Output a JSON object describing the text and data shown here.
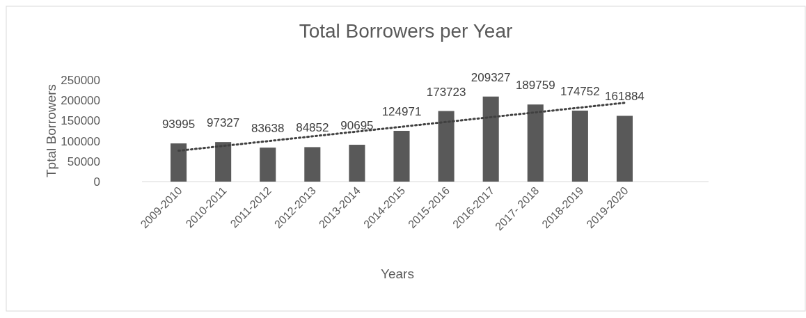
{
  "chart_data": {
    "type": "bar",
    "title": "Total Borrowers per Year",
    "xlabel": "Years",
    "ylabel": "Tptal Borrowers",
    "categories": [
      "2009-2010",
      "2010-2011",
      "2011-2012",
      "2012-2013",
      "2013-2014",
      "2014-2015",
      "2015-2016",
      "2016-2017",
      "2017- 2018",
      "2018-2019",
      "2019-2020"
    ],
    "series": [
      {
        "color": "#595959",
        "values": [
          93995,
          97327,
          83638,
          84852,
          90695,
          124971,
          173723,
          209327,
          189759,
          174752,
          161884
        ],
        "value_labels": [
          "93995",
          "97327",
          "83638",
          "84852",
          "90695",
          "124971",
          "173723",
          "209327",
          "189759",
          "174752",
          "161884"
        ]
      },
      {
        "type": "line",
        "color": "#404040",
        "line_style": "dotted",
        "x": [
          "2009-2010",
          "2019-2020"
        ],
        "values": [
          76000,
          194000
        ]
      }
    ],
    "ylim": [
      0,
      250000
    ],
    "yticks": [
      0,
      50000,
      100000,
      150000,
      200000,
      250000
    ],
    "grid": false
  }
}
